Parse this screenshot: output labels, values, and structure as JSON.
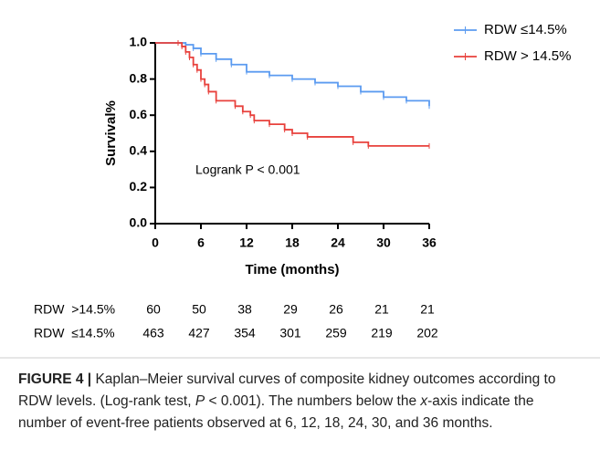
{
  "chart_data": {
    "type": "step",
    "x_label": "Time (months)",
    "y_label": "Survival%",
    "annotation": "Logrank P < 0.001",
    "xlim": [
      0,
      36
    ],
    "xticks": [
      0,
      6,
      12,
      18,
      24,
      30,
      36
    ],
    "ylim": [
      0,
      1
    ],
    "yticks": [
      {
        "value": 0,
        "label": "0.0"
      },
      0.2,
      0.4,
      0.6,
      0.8,
      {
        "value": 1,
        "label": "1.0"
      }
    ],
    "legend": "top-right",
    "series": [
      {
        "name": "RDW ≤14.5%",
        "color": "#5b9bf0",
        "x": [
          0,
          3,
          4,
          5,
          6,
          8,
          10,
          12,
          15,
          18,
          21,
          24,
          27,
          30,
          33,
          36
        ],
        "values": [
          1,
          1,
          0.99,
          0.97,
          0.94,
          0.91,
          0.88,
          0.84,
          0.82,
          0.8,
          0.78,
          0.76,
          0.73,
          0.7,
          0.68,
          0.65
        ]
      },
      {
        "name": "RDW > 14.5%",
        "color": "#e8413c",
        "x": [
          0,
          3,
          3.5,
          4,
          4.5,
          5,
          5.5,
          6,
          6.5,
          7,
          8,
          10.5,
          11.5,
          12.5,
          13,
          15,
          17,
          18,
          20,
          26,
          28,
          36
        ],
        "values": [
          1,
          1,
          0.98,
          0.95,
          0.92,
          0.88,
          0.85,
          0.8,
          0.77,
          0.73,
          0.68,
          0.65,
          0.62,
          0.6,
          0.57,
          0.55,
          0.52,
          0.5,
          0.48,
          0.45,
          0.43,
          0.43
        ]
      }
    ]
  },
  "risk_table": {
    "rows": [
      {
        "label": "RDW  >14.5%",
        "values": [
          60,
          50,
          38,
          29,
          26,
          21,
          21
        ]
      },
      {
        "label": "RDW  ≤14.5%",
        "values": [
          463,
          427,
          354,
          301,
          259,
          219,
          202
        ]
      }
    ]
  },
  "caption": {
    "label": "FIGURE 4 |",
    "text": [
      "Kaplan–Meier survival curves of composite kidney outcomes according to RDW levels. (Log-rank test, ",
      "P",
      " < 0.001). The numbers below the ",
      "x",
      "-axis indicate the number of event-free patients observed at 6, 12, 18, 24, 30, and 36 months."
    ]
  }
}
